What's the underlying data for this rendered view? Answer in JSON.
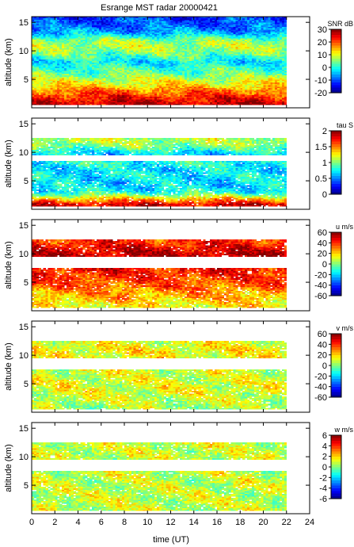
{
  "chart_data": {
    "title": "Esrange MST radar 20000421",
    "type": "heatmap",
    "xlabel": "time (UT)",
    "xlim": [
      0,
      24
    ],
    "xticks": [
      "0",
      "2",
      "4",
      "6",
      "8",
      "10",
      "12",
      "14",
      "16",
      "18",
      "20",
      "22",
      "24"
    ],
    "data_time_range": [
      0,
      22
    ],
    "panels": [
      {
        "name": "snr",
        "ylabel": "altitude (km)",
        "ylim": [
          0,
          16
        ],
        "yticks": [
          "5",
          "10",
          "15"
        ],
        "colorbar_label": "SNR dB",
        "clim": [
          -20,
          30
        ],
        "colorbar_ticks": [
          "30",
          "20",
          "10",
          "0",
          "-10",
          "-20"
        ],
        "profile": {
          "altitude_km": [
            1,
            2,
            3,
            4,
            5,
            6,
            7,
            8,
            9,
            10,
            11,
            12,
            13,
            14,
            15,
            16
          ],
          "value": [
            26,
            22,
            18,
            12,
            9,
            4,
            2,
            -2,
            2,
            6,
            8,
            5,
            -4,
            -8,
            -10,
            -11
          ]
        }
      },
      {
        "name": "tau",
        "ylabel": "altitude (km)",
        "ylim": [
          0,
          16
        ],
        "yticks": [
          "5",
          "10",
          "15"
        ],
        "colorbar_label": "tau S",
        "clim": [
          0,
          2
        ],
        "colorbar_ticks": [
          "2",
          "1.5",
          "1",
          "0.5",
          "0"
        ],
        "profile": {
          "altitude_km": [
            1,
            2,
            3,
            4,
            5,
            6,
            7,
            8,
            9,
            10,
            11,
            12,
            13
          ],
          "value": [
            1.8,
            1.3,
            0.8,
            0.7,
            0.7,
            0.75,
            0.7,
            0.8,
            null,
            0.7,
            1.0,
            1.1,
            null
          ]
        }
      },
      {
        "name": "u",
        "ylabel": "altitude (km)",
        "ylim": [
          0,
          16
        ],
        "yticks": [
          "5",
          "10",
          "15"
        ],
        "colorbar_label": "u m/s",
        "clim": [
          -60,
          60
        ],
        "colorbar_ticks": [
          "60",
          "40",
          "20",
          "0",
          "-20",
          "-40",
          "-60"
        ],
        "profile": {
          "altitude_km": [
            1,
            2,
            3,
            4,
            5,
            6,
            7,
            8,
            9,
            10,
            11,
            12,
            13
          ],
          "value": [
            15,
            22,
            26,
            32,
            36,
            40,
            44,
            null,
            null,
            52,
            48,
            40,
            null
          ]
        }
      },
      {
        "name": "v",
        "ylabel": "altitude (km)",
        "ylim": [
          0,
          16
        ],
        "yticks": [
          "5",
          "10",
          "15"
        ],
        "colorbar_label": "v m/s",
        "clim": [
          -60,
          60
        ],
        "colorbar_ticks": [
          "60",
          "40",
          "20",
          "0",
          "-20",
          "-40",
          "-60"
        ],
        "profile": {
          "altitude_km": [
            1,
            2,
            3,
            4,
            5,
            6,
            7,
            8,
            9,
            10,
            11,
            12,
            13
          ],
          "value": [
            5,
            8,
            10,
            12,
            12,
            10,
            10,
            null,
            null,
            14,
            16,
            12,
            null
          ]
        }
      },
      {
        "name": "w",
        "ylabel": "altitude (km)",
        "ylim": [
          0,
          16
        ],
        "yticks": [
          "5",
          "10",
          "15"
        ],
        "colorbar_label": "w m/s",
        "clim": [
          -6,
          6
        ],
        "colorbar_ticks": [
          "6",
          "4",
          "2",
          "0",
          "-2",
          "-4",
          "-6"
        ],
        "profile": {
          "altitude_km": [
            1,
            2,
            3,
            4,
            5,
            6,
            7,
            8,
            9,
            10,
            11,
            12,
            13
          ],
          "value": [
            0.8,
            0.8,
            0.8,
            0.8,
            0.8,
            0.8,
            0.8,
            null,
            null,
            0.9,
            0.9,
            0.9,
            null
          ]
        }
      }
    ]
  }
}
